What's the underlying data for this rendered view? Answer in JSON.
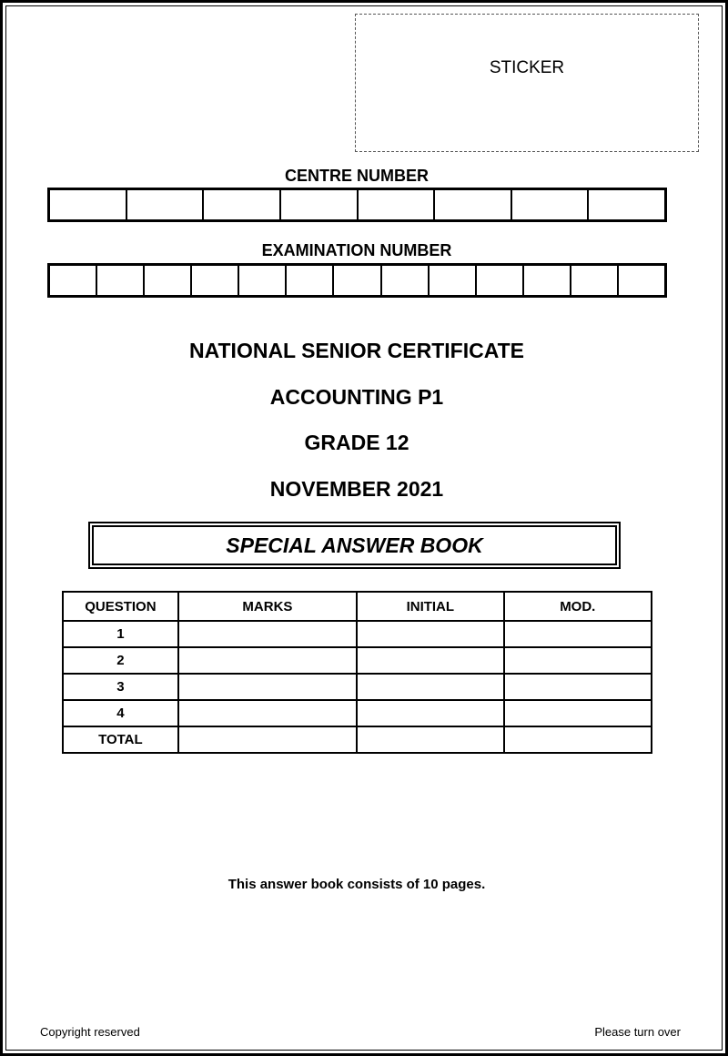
{
  "sticker_label": "STICKER",
  "centre_number": {
    "label": "CENTRE NUMBER",
    "boxes": 8
  },
  "examination_number": {
    "label": "EXAMINATION NUMBER",
    "boxes": 13
  },
  "titles": [
    "NATIONAL SENIOR CERTIFICATE",
    "ACCOUNTING P1",
    "GRADE 12",
    "NOVEMBER 2021"
  ],
  "book_title": "SPECIAL ANSWER BOOK",
  "marks_table": {
    "headers": [
      "QUESTION",
      "MARKS",
      "INITIAL",
      "MOD."
    ],
    "rows": [
      "1",
      "2",
      "3",
      "4",
      "TOTAL"
    ]
  },
  "pages_note": "This answer book consists of 10 pages.",
  "footer": {
    "left": "Copyright reserved",
    "right": "Please turn over"
  }
}
